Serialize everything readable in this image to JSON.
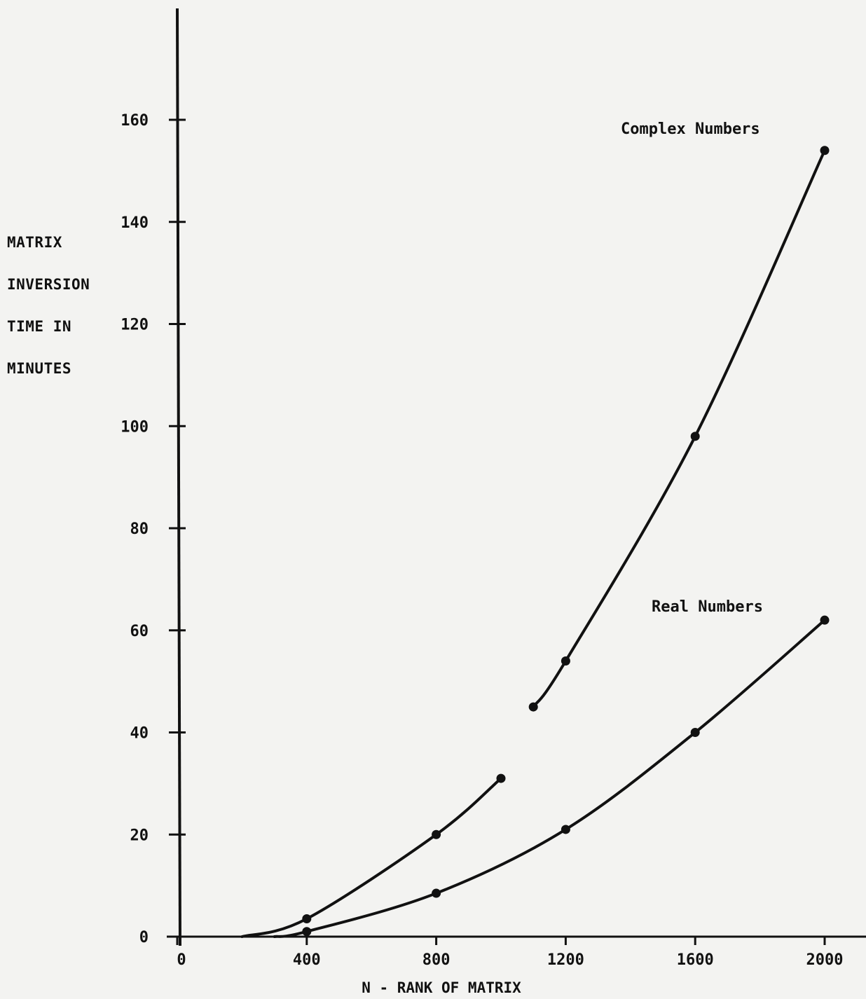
{
  "chart_data": {
    "type": "line",
    "title": "",
    "ylabel_lines": [
      "MATRIX",
      "INVERSION",
      "TIME IN",
      "MINUTES"
    ],
    "xlabel": "N - RANK OF MATRIX",
    "xlim": [
      0,
      2000
    ],
    "ylim": [
      0,
      160
    ],
    "xticks": [
      0,
      400,
      800,
      1200,
      1600,
      2000
    ],
    "xtick_labels": [
      "0",
      "400",
      "800",
      "1200",
      "1600",
      "2000"
    ],
    "yticks": [
      0,
      20,
      40,
      60,
      80,
      100,
      120,
      140,
      160
    ],
    "ytick_labels": [
      "0",
      "20",
      "40",
      "60",
      "80",
      "100",
      "120",
      "140",
      "160"
    ],
    "grid": false,
    "series": [
      {
        "name": "Complex Numbers",
        "x": [
          400,
          800,
          1000,
          1100,
          1200,
          1600,
          2000
        ],
        "values": [
          3.5,
          20,
          31,
          45,
          54,
          98,
          154
        ]
      },
      {
        "name": "Real Numbers",
        "x": [
          400,
          800,
          1200,
          1600,
          2000
        ],
        "values": [
          1,
          8.5,
          21,
          40,
          62
        ]
      }
    ]
  }
}
